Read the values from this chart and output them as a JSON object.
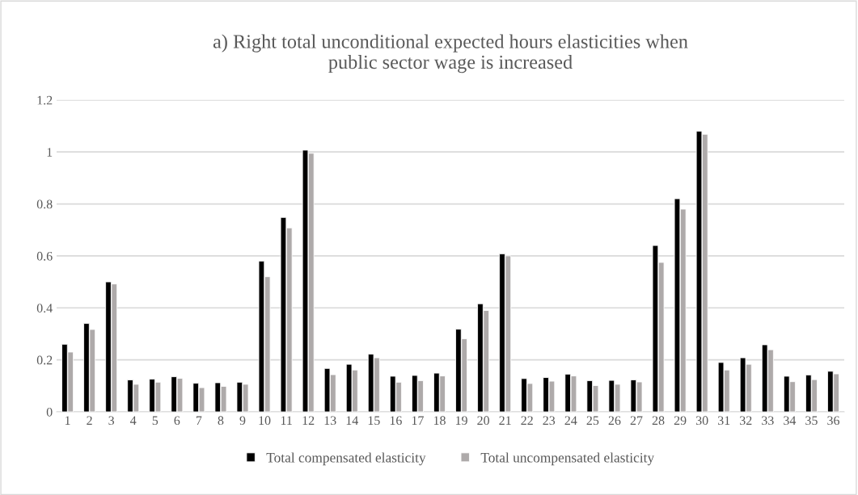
{
  "chart_data": {
    "type": "bar",
    "title": "a) Right total unconditional expected hours elasticities when\npublic sector wage is increased",
    "categories": [
      "1",
      "2",
      "3",
      "4",
      "5",
      "6",
      "7",
      "8",
      "9",
      "10",
      "11",
      "12",
      "13",
      "14",
      "15",
      "16",
      "17",
      "18",
      "19",
      "20",
      "21",
      "22",
      "23",
      "24",
      "25",
      "26",
      "27",
      "28",
      "29",
      "30",
      "31",
      "32",
      "33",
      "34",
      "35",
      "36"
    ],
    "series": [
      {
        "name": "Total compensated elasticity",
        "color": "#000000",
        "values": [
          0.26,
          0.34,
          0.5,
          0.123,
          0.126,
          0.135,
          0.11,
          0.112,
          0.114,
          0.58,
          0.748,
          1.007,
          0.167,
          0.183,
          0.222,
          0.137,
          0.14,
          0.149,
          0.318,
          0.416,
          0.608,
          0.128,
          0.132,
          0.145,
          0.12,
          0.121,
          0.123,
          0.64,
          0.82,
          1.08,
          0.19,
          0.208,
          0.258,
          0.137,
          0.142,
          0.156
        ]
      },
      {
        "name": "Total uncompensated elasticity",
        "color": "#aeaaaa",
        "values": [
          0.23,
          0.317,
          0.492,
          0.106,
          0.114,
          0.129,
          0.093,
          0.098,
          0.106,
          0.52,
          0.708,
          0.995,
          0.143,
          0.161,
          0.208,
          0.114,
          0.12,
          0.138,
          0.281,
          0.39,
          0.6,
          0.109,
          0.118,
          0.138,
          0.101,
          0.106,
          0.115,
          0.575,
          0.78,
          1.068,
          0.161,
          0.183,
          0.239,
          0.116,
          0.124,
          0.146
        ]
      }
    ],
    "ylim": [
      0,
      1.2
    ],
    "yticks": [
      0,
      0.2,
      0.4,
      0.6,
      0.8,
      1,
      1.2
    ],
    "grid": "y",
    "legend": "bottom"
  }
}
